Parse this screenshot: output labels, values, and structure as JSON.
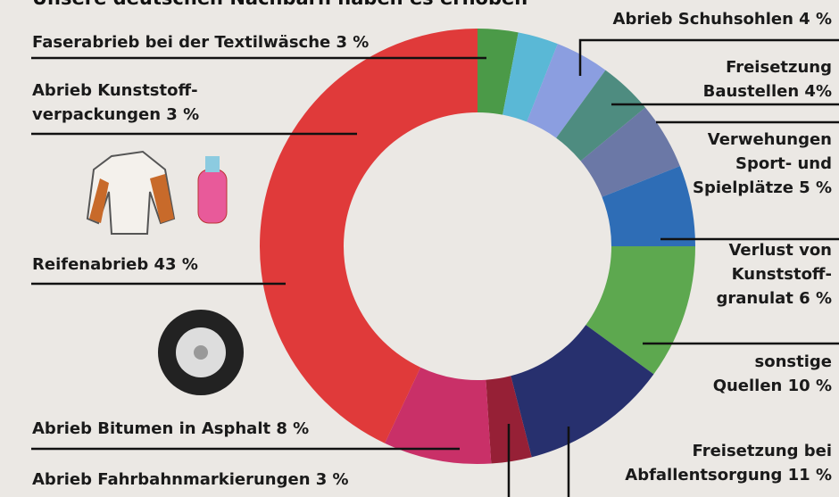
{
  "chart_data": {
    "type": "pie",
    "title": "Unsere deutschen Nachbarn haben es erhoben",
    "donut": true,
    "categories": [
      "Faserabrieb bei der Textilwäsche 3 %",
      "Abrieb Kunststoff-\nverpackungen 3 %",
      "Abrieb Schuhsohlen 4 %",
      "Freisetzung\nBaustellen 4%",
      "Verwehungen\nSport- und\nSpielplätze 5 %",
      "Verlust von\nKunststoff-\ngranulat 6 %",
      "sonstige\nQuellen 10 %",
      "Freisetzung bei\nAbfallentsorgung 11 %",
      "Abrieb Fahrbahnmarkierungen 3 %",
      "Abrieb Bitumen in Asphalt 8 %",
      "Reifenabrieb 43 %"
    ],
    "values": [
      3,
      3,
      4,
      4,
      5,
      6,
      10,
      11,
      3,
      8,
      43
    ],
    "colors": [
      "#4b9a48",
      "#5ab8d6",
      "#8b9ee0",
      "#4e8c80",
      "#6b78a6",
      "#2e6db6",
      "#5da84f",
      "#27306e",
      "#962036",
      "#c93068",
      "#e03a3a"
    ]
  }
}
